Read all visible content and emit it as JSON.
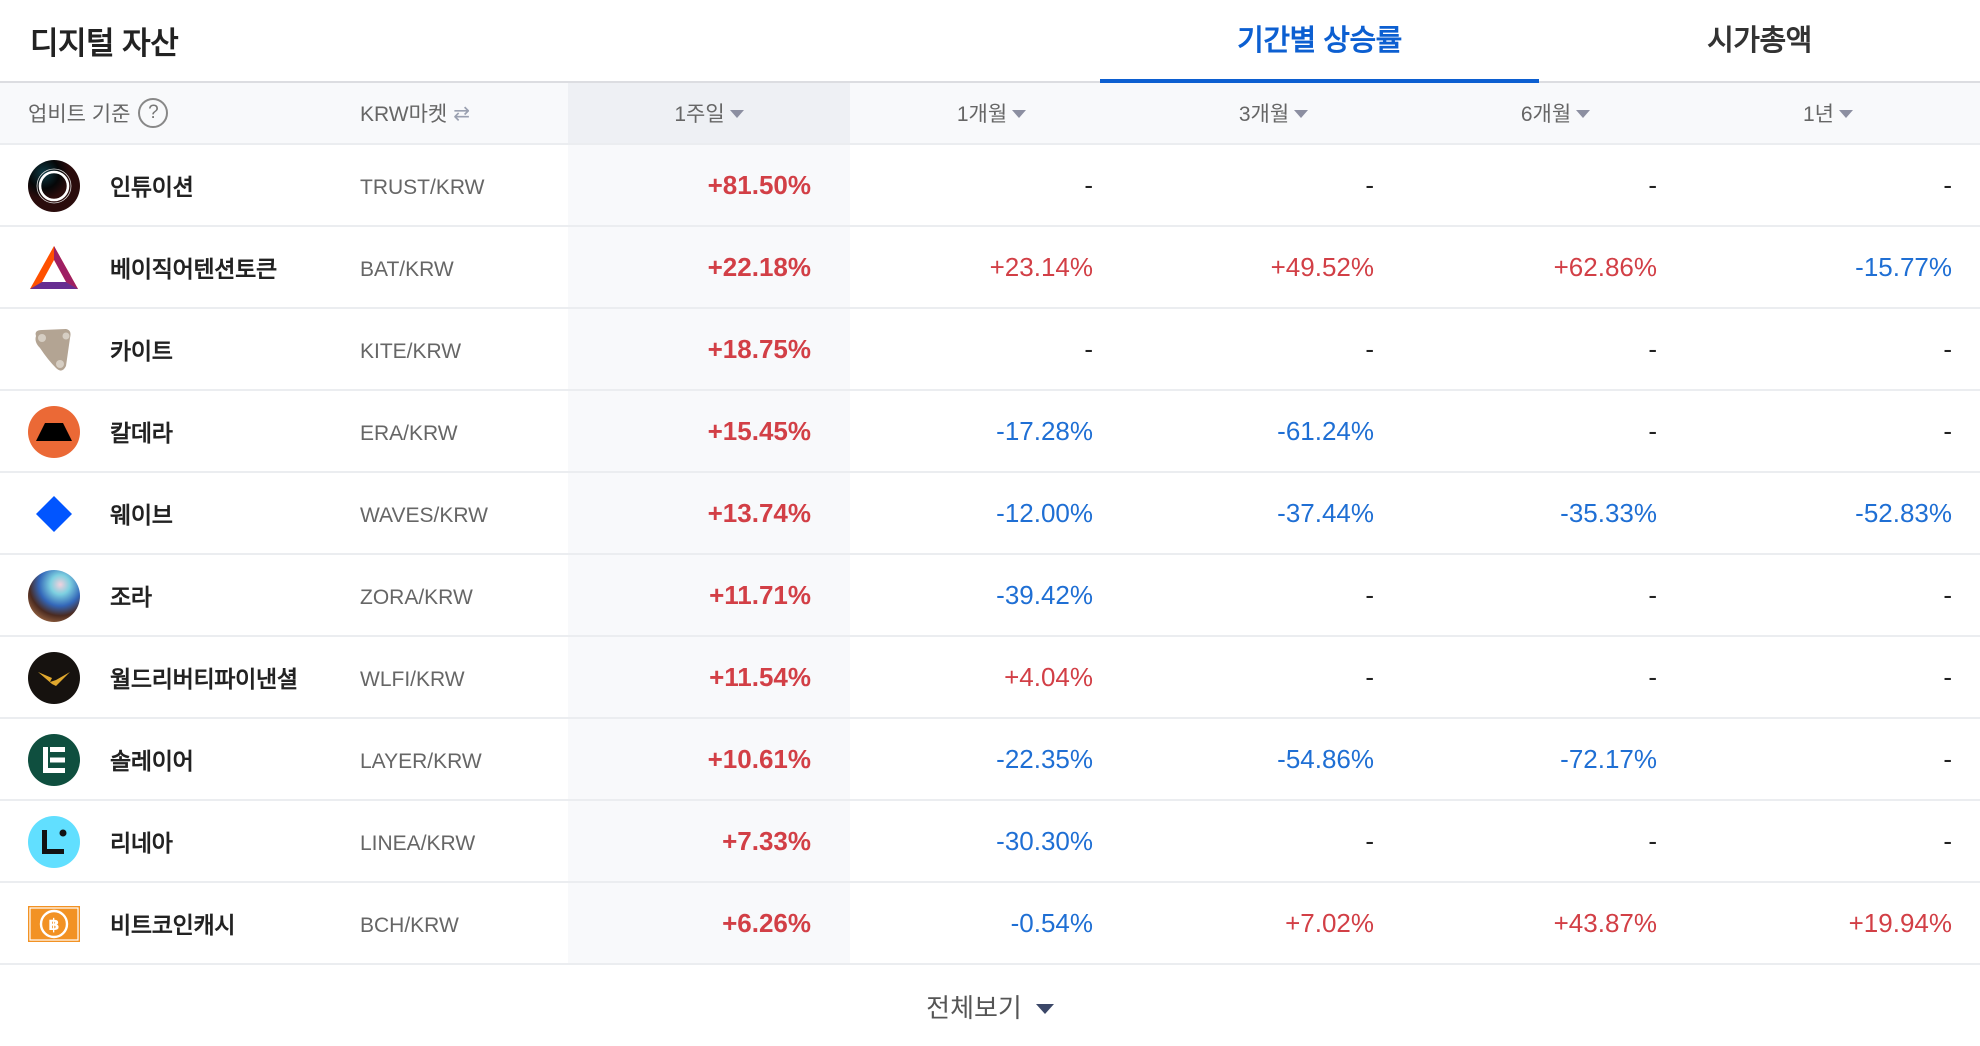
{
  "header": {
    "title": "디지털 자산",
    "tabs": [
      {
        "label": "기간별 상승률",
        "active": true
      },
      {
        "label": "시가총액",
        "active": false
      }
    ]
  },
  "columns": {
    "basis_label": "업비트 기준",
    "help_icon": "?",
    "market_label": "KRW마켓",
    "market_swap_icon": "⇄",
    "periods": [
      "1주일",
      "1개월",
      "3개월",
      "6개월",
      "1년"
    ],
    "selected_period": "1주일"
  },
  "colors": {
    "accent": "#0c5fd1",
    "up": "#d23f46",
    "down": "#1f6fd4"
  },
  "rows": [
    {
      "name": "인튜이션",
      "pair": "TRUST/KRW",
      "icon": "intuition-logo",
      "w1": "+81.50%",
      "m1": "-",
      "m3": "-",
      "m6": "-",
      "y1": "-"
    },
    {
      "name": "베이직어텐션토큰",
      "pair": "BAT/KRW",
      "icon": "bat-logo",
      "w1": "+22.18%",
      "m1": "+23.14%",
      "m3": "+49.52%",
      "m6": "+62.86%",
      "y1": "-15.77%"
    },
    {
      "name": "카이트",
      "pair": "KITE/KRW",
      "icon": "kite-logo",
      "w1": "+18.75%",
      "m1": "-",
      "m3": "-",
      "m6": "-",
      "y1": "-"
    },
    {
      "name": "칼데라",
      "pair": "ERA/KRW",
      "icon": "caldera-logo",
      "w1": "+15.45%",
      "m1": "-17.28%",
      "m3": "-61.24%",
      "m6": "-",
      "y1": "-"
    },
    {
      "name": "웨이브",
      "pair": "WAVES/KRW",
      "icon": "waves-logo",
      "w1": "+13.74%",
      "m1": "-12.00%",
      "m3": "-37.44%",
      "m6": "-35.33%",
      "y1": "-52.83%"
    },
    {
      "name": "조라",
      "pair": "ZORA/KRW",
      "icon": "zora-logo",
      "w1": "+11.71%",
      "m1": "-39.42%",
      "m3": "-",
      "m6": "-",
      "y1": "-"
    },
    {
      "name": "월드리버티파이낸셜",
      "pair": "WLFI/KRW",
      "icon": "wlfi-logo",
      "w1": "+11.54%",
      "m1": "+4.04%",
      "m3": "-",
      "m6": "-",
      "y1": "-"
    },
    {
      "name": "솔레이어",
      "pair": "LAYER/KRW",
      "icon": "solayer-logo",
      "w1": "+10.61%",
      "m1": "-22.35%",
      "m3": "-54.86%",
      "m6": "-72.17%",
      "y1": "-"
    },
    {
      "name": "리네아",
      "pair": "LINEA/KRW",
      "icon": "linea-logo",
      "w1": "+7.33%",
      "m1": "-30.30%",
      "m3": "-",
      "m6": "-",
      "y1": "-"
    },
    {
      "name": "비트코인캐시",
      "pair": "BCH/KRW",
      "icon": "bch-logo",
      "w1": "+6.26%",
      "m1": "-0.54%",
      "m3": "+7.02%",
      "m6": "+43.87%",
      "y1": "+19.94%"
    }
  ],
  "footer": {
    "view_all_label": "전체보기"
  }
}
